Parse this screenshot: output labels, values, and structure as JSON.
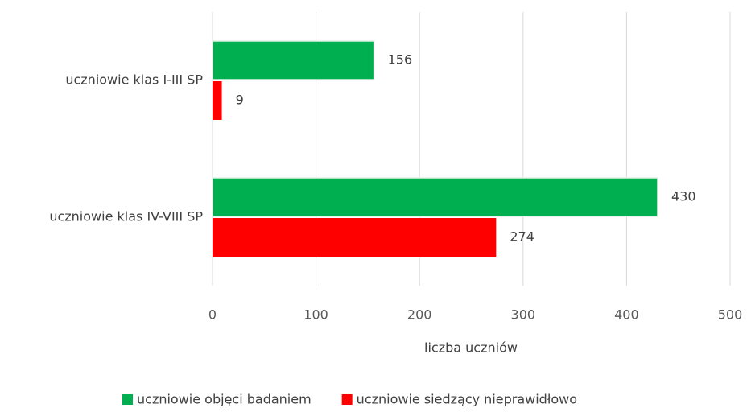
{
  "chart_data": {
    "type": "barh",
    "categories": [
      "uczniowie klas I-III SP",
      "uczniowie klas IV-VIII SP"
    ],
    "series": [
      {
        "name": "uczniowie objęci badaniem",
        "color": "#00b050",
        "values": [
          156,
          430
        ]
      },
      {
        "name": "uczniowie siedzący nieprawidłowo",
        "color": "#ff0000",
        "values": [
          9,
          274
        ]
      }
    ],
    "xlabel": "liczba uczniów",
    "xlim": [
      0,
      500
    ],
    "xticks": [
      0,
      100,
      200,
      300,
      400,
      500
    ],
    "grid": true,
    "legend": "bottom"
  }
}
